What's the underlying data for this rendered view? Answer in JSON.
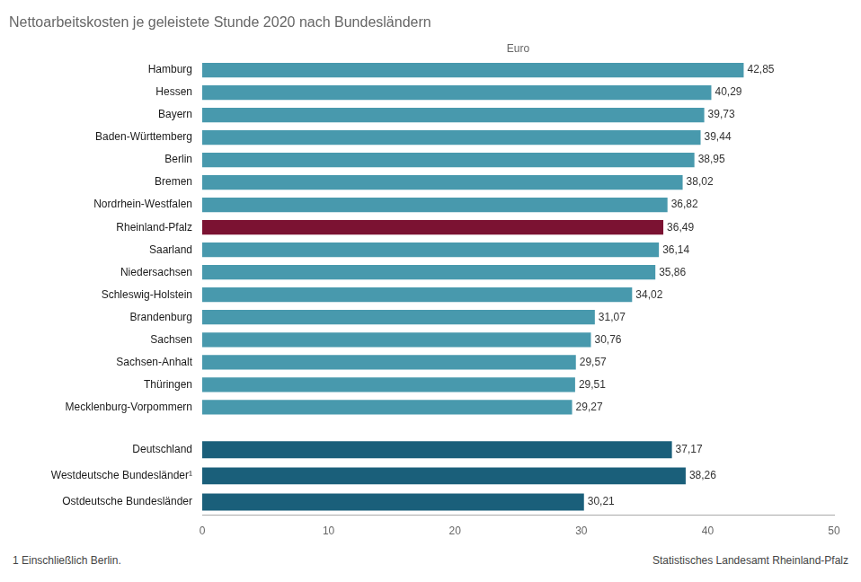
{
  "chart_data": [
    {
      "type": "bar",
      "orientation": "horizontal",
      "title": "Nettoarbeitskosten je geleistete Stunde 2020 nach Bundesländern",
      "xlabel": "Euro",
      "categories": [
        "Hamburg",
        "Hessen",
        "Bayern",
        "Baden-Württemberg",
        "Berlin",
        "Bremen",
        "Nordrhein-Westfalen",
        "Rheinland-Pfalz",
        "Saarland",
        "Niedersachsen",
        "Schleswig-Holstein",
        "Brandenburg",
        "Sachsen",
        "Sachsen-Anhalt",
        "Thüringen",
        "Mecklenburg-Vorpommern"
      ],
      "values": [
        42.85,
        40.29,
        39.73,
        39.44,
        38.95,
        38.02,
        36.82,
        36.49,
        36.14,
        35.86,
        34.02,
        31.07,
        30.76,
        29.57,
        29.51,
        29.27
      ],
      "value_labels": [
        "42,85",
        "40,29",
        "39,73",
        "39,44",
        "38,95",
        "38,02",
        "36,82",
        "36,49",
        "36,14",
        "35,86",
        "34,02",
        "31,07",
        "30,76",
        "29,57",
        "29,51",
        "29,27"
      ],
      "colors": [
        "#4899ad",
        "#4899ad",
        "#4899ad",
        "#4899ad",
        "#4899ad",
        "#4899ad",
        "#4899ad",
        "#7B1232",
        "#4899ad",
        "#4899ad",
        "#4899ad",
        "#4899ad",
        "#4899ad",
        "#4899ad",
        "#4899ad",
        "#4899ad"
      ],
      "xlim": [
        0,
        50
      ],
      "tick_labels": "y",
      "grid": false,
      "data_labels": true
    },
    {
      "type": "bar",
      "orientation": "horizontal",
      "categories": [
        "Deutschland",
        "Westdeutsche Bundesländer¹",
        "Ostdeutsche Bundesländer"
      ],
      "values": [
        37.17,
        38.26,
        30.21
      ],
      "value_labels": [
        "37,17",
        "38,26",
        "30,21"
      ],
      "color": "#1a5f7a",
      "xlim": [
        0,
        50
      ],
      "xticks": [
        0,
        10,
        20,
        30,
        40,
        50
      ],
      "grid": false,
      "data_labels": true,
      "annotations": [
        "1 Einschließlich Berlin.",
        "Statistisches Landesamt Rheinland-Pfalz"
      ]
    }
  ]
}
